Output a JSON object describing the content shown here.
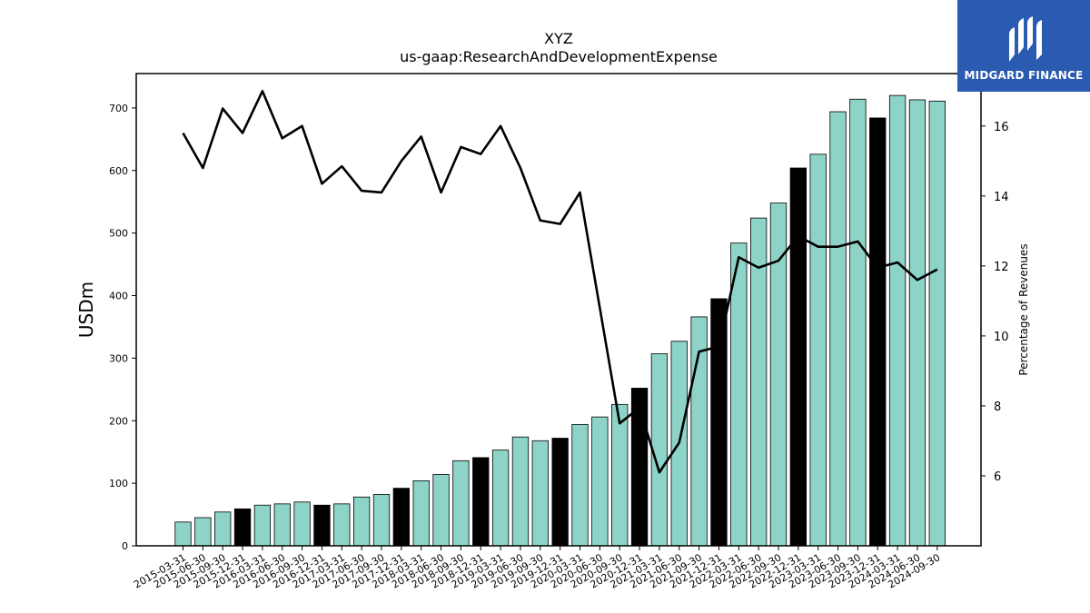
{
  "brand": {
    "name": "MIDGARD FINANCE",
    "color": "#2b5bb0"
  },
  "chart_data": {
    "type": "bar",
    "title": "XYZ",
    "subtitle": "us-gaap:ResearchAndDevelopmentExpense",
    "ylabel": "USDm",
    "y2label": "Percentage of Revenues",
    "ylim": [
      0,
      755
    ],
    "y2lim": [
      4.0,
      17.5
    ],
    "yticks": [
      0,
      100,
      200,
      300,
      400,
      500,
      600,
      700
    ],
    "y2ticks": [
      6,
      8,
      10,
      12,
      14,
      16
    ],
    "grid": false,
    "colors": {
      "bar": "#8dd3c7",
      "highlight_bar": "#000000",
      "line": "#000000"
    },
    "categories": [
      "2015-03-31",
      "2015-06-30",
      "2015-09-30",
      "2015-12-31",
      "2016-03-31",
      "2016-06-30",
      "2016-09-30",
      "2016-12-31",
      "2017-03-31",
      "2017-06-30",
      "2017-09-30",
      "2017-12-31",
      "2018-03-31",
      "2018-06-30",
      "2018-09-30",
      "2018-12-31",
      "2019-03-31",
      "2019-06-30",
      "2019-09-30",
      "2019-12-31",
      "2020-03-31",
      "2020-06-30",
      "2020-09-30",
      "2020-12-31",
      "2021-03-31",
      "2021-06-30",
      "2021-09-30",
      "2021-12-31",
      "2022-03-31",
      "2022-06-30",
      "2022-09-30",
      "2022-12-31",
      "2023-03-31",
      "2023-06-30",
      "2023-09-30",
      "2023-12-31",
      "2024-03-31",
      "2024-06-30",
      "2024-09-30"
    ],
    "series": [
      {
        "type": "bar",
        "values": [
          38,
          45,
          54,
          59,
          65,
          67,
          70,
          65,
          67,
          78,
          82,
          92,
          104,
          114,
          136,
          141,
          153,
          174,
          168,
          172,
          194,
          206,
          226,
          252,
          307,
          327,
          366,
          395,
          484,
          524,
          548,
          604,
          626,
          694,
          714,
          684,
          720,
          713,
          711
        ],
        "highlight": [
          false,
          false,
          false,
          true,
          false,
          false,
          false,
          true,
          false,
          false,
          false,
          true,
          false,
          false,
          false,
          true,
          false,
          false,
          false,
          true,
          false,
          false,
          false,
          true,
          false,
          false,
          false,
          true,
          false,
          false,
          false,
          true,
          false,
          false,
          false,
          true,
          false,
          false,
          false
        ]
      },
      {
        "type": "line",
        "axis": "right",
        "values": [
          15.8,
          14.8,
          16.5,
          15.8,
          17.0,
          15.65,
          16.0,
          14.35,
          14.85,
          14.15,
          14.1,
          15.0,
          15.7,
          14.1,
          15.4,
          15.2,
          16.0,
          14.8,
          13.3,
          13.2,
          14.1,
          10.8,
          7.5,
          7.95,
          6.1,
          6.95,
          9.55,
          9.7,
          12.25,
          11.95,
          12.15,
          12.85,
          12.55,
          12.55,
          12.7,
          11.95,
          12.1,
          11.6,
          11.9
        ]
      }
    ]
  }
}
